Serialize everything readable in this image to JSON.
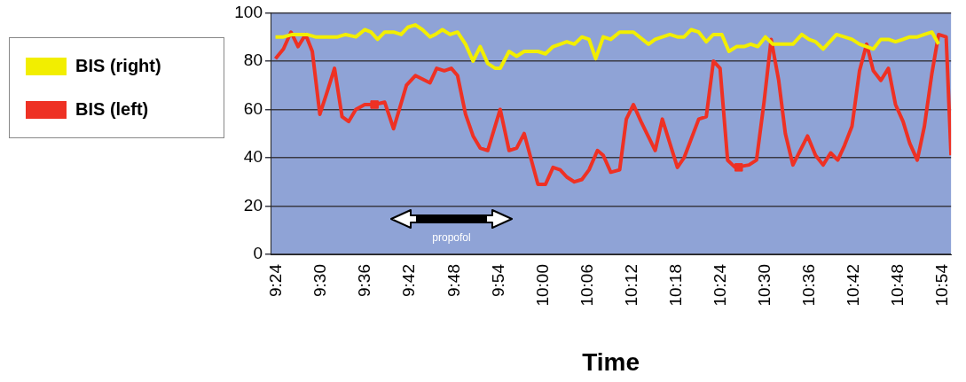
{
  "chart_data": {
    "type": "line",
    "xlabel": "Time",
    "legend": "left",
    "grid": "y",
    "marker": "none",
    "line_style": "solid",
    "xlim": [
      9.386,
      10.918
    ],
    "ylim": [
      0,
      100
    ],
    "yticks": [
      0,
      20,
      40,
      60,
      80,
      100
    ],
    "xticks": [
      {
        "value": 9.4,
        "label": "9:24"
      },
      {
        "value": 9.5,
        "label": "9:30"
      },
      {
        "value": 9.6,
        "label": "9:36"
      },
      {
        "value": 9.7,
        "label": "9:42"
      },
      {
        "value": 9.8,
        "label": "9:48"
      },
      {
        "value": 9.9,
        "label": "9:54"
      },
      {
        "value": 10.0,
        "label": "10:00"
      },
      {
        "value": 10.1,
        "label": "10:06"
      },
      {
        "value": 10.2,
        "label": "10:12"
      },
      {
        "value": 10.3,
        "label": "10:18"
      },
      {
        "value": 10.4,
        "label": "10:24"
      },
      {
        "value": 10.5,
        "label": "10:30"
      },
      {
        "value": 10.6,
        "label": "10:36"
      },
      {
        "value": 10.7,
        "label": "10:42"
      },
      {
        "value": 10.8,
        "label": "10:48"
      },
      {
        "value": 10.9,
        "label": "10:54"
      }
    ],
    "annotations": [
      "propofol"
    ],
    "series": [
      {
        "name": "BIS (right)",
        "color": "#f2ee00",
        "x": [
          9.397,
          9.415,
          9.435,
          9.468,
          9.487,
          9.517,
          9.537,
          9.555,
          9.578,
          9.598,
          9.612,
          9.627,
          9.643,
          9.663,
          9.68,
          9.695,
          9.712,
          9.728,
          9.745,
          9.757,
          9.773,
          9.79,
          9.807,
          9.825,
          9.842,
          9.858,
          9.875,
          9.892,
          9.903,
          9.923,
          9.94,
          9.957,
          9.972,
          9.988,
          10.005,
          10.022,
          10.038,
          10.053,
          10.07,
          10.087,
          10.103,
          10.118,
          10.135,
          10.152,
          10.172,
          10.203,
          10.237,
          10.252,
          10.285,
          10.302,
          10.317,
          10.333,
          10.35,
          10.367,
          10.383,
          10.402,
          10.418,
          10.435,
          10.452,
          10.467,
          10.483,
          10.5,
          10.517,
          10.562,
          10.582,
          10.598,
          10.613,
          10.63,
          10.66,
          10.678,
          10.695,
          10.712,
          10.728,
          10.743,
          10.76,
          10.777,
          10.793,
          10.81,
          10.825,
          10.842,
          10.858,
          10.875,
          10.89
        ],
        "values": [
          90,
          90,
          91,
          91,
          90,
          90,
          90,
          91,
          90,
          93,
          92,
          89,
          92,
          92,
          91,
          94,
          95,
          93,
          90,
          91,
          93,
          91,
          92,
          87,
          80,
          86,
          79,
          77,
          77,
          84,
          82,
          84,
          84,
          84,
          83,
          86,
          87,
          88,
          87,
          90,
          89,
          81,
          90,
          89,
          92,
          92,
          87,
          89,
          91,
          90,
          90,
          93,
          92,
          88,
          91,
          91,
          84,
          86,
          86,
          87,
          86,
          90,
          87,
          87,
          91,
          89,
          88,
          85,
          91,
          90,
          89,
          87,
          86,
          85,
          89,
          89,
          88,
          89,
          90,
          90,
          91,
          92,
          87
        ]
      },
      {
        "name": "BIS (left)",
        "color": "#ee3124",
        "x": [
          9.397,
          9.415,
          9.432,
          9.448,
          9.465,
          9.48,
          9.497,
          9.513,
          9.53,
          9.547,
          9.562,
          9.578,
          9.598,
          9.62,
          9.643,
          9.663,
          9.692,
          9.712,
          9.745,
          9.76,
          9.777,
          9.793,
          9.807,
          9.825,
          9.842,
          9.858,
          9.875,
          9.903,
          9.923,
          9.94,
          9.957,
          9.988,
          10.005,
          10.022,
          10.038,
          10.053,
          10.07,
          10.087,
          10.103,
          10.122,
          10.135,
          10.152,
          10.172,
          10.187,
          10.203,
          10.22,
          10.252,
          10.268,
          10.285,
          10.302,
          10.317,
          10.35,
          10.367,
          10.383,
          10.398,
          10.415,
          10.432,
          10.463,
          10.48,
          10.497,
          10.513,
          10.53,
          10.545,
          10.562,
          10.595,
          10.613,
          10.63,
          10.647,
          10.663,
          10.678,
          10.695,
          10.712,
          10.728,
          10.743,
          10.76,
          10.777,
          10.793,
          10.81,
          10.825,
          10.842,
          10.858,
          10.875,
          10.89,
          10.907,
          10.918
        ],
        "values": [
          81,
          85,
          92,
          86,
          91,
          84,
          58,
          67,
          77,
          57,
          55,
          60,
          62,
          62,
          63,
          52,
          70,
          74,
          71,
          77,
          76,
          77,
          74,
          58,
          49,
          44,
          43,
          60,
          43,
          44,
          50,
          29,
          29,
          36,
          35,
          32,
          30,
          31,
          35,
          43,
          41,
          34,
          35,
          56,
          62,
          55,
          43,
          56,
          46,
          36,
          40,
          56,
          57,
          80,
          77,
          39,
          36,
          37,
          39,
          63,
          89,
          72,
          50,
          37,
          49,
          41,
          37,
          42,
          39,
          45,
          53,
          76,
          87,
          76,
          72,
          77,
          62,
          55,
          46,
          39,
          53,
          75,
          91,
          90,
          41
        ]
      },
      {
        "type": "scatter",
        "color": "#ee3124",
        "marker": "square",
        "x": [
          9.62,
          10.44
        ],
        "values": [
          62,
          36
        ]
      }
    ]
  }
}
